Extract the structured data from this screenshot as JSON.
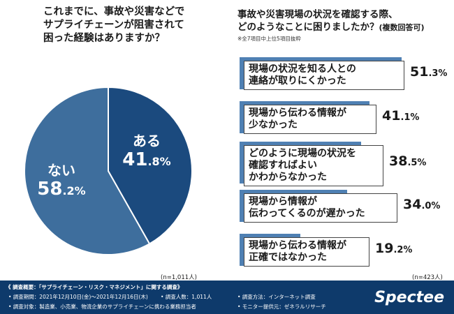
{
  "left_question": [
    "これまでに、事故や災害などで",
    "サプライチェーンが阻害されて",
    "困った経験はありますか？"
  ],
  "right_question": {
    "line1": "事故や災害現場の状況を確認する際、",
    "line2": "どのようなことに困りましたか？",
    "suffix": "(複数回答可)"
  },
  "right_note": "※全7項目中上位5項目抜粋",
  "left_n": "(n=1,011人)",
  "right_n": "(n=423人)",
  "colors": {
    "pie_yes": "#1b4a7e",
    "pie_no": "#3e6e9d",
    "bar_fill": "#4f80b3",
    "footer_bg": "#0e3a6b"
  },
  "chart_data": [
    {
      "type": "pie",
      "slices": [
        {
          "label": "ある",
          "value": 41.8,
          "display_main": "41",
          "display_dec": ".8%"
        },
        {
          "label": "ない",
          "value": 58.2,
          "display_main": "58",
          "display_dec": ".2%"
        }
      ]
    },
    {
      "type": "bar",
      "orientation": "horizontal",
      "bars": [
        {
          "lines": [
            "現場の状況を知る人との",
            "連絡が取りにくかった"
          ],
          "value": 51.3,
          "display_main": "51",
          "display_dec": ".3%"
        },
        {
          "lines": [
            "現場から伝わる情報が",
            "少なかった"
          ],
          "value": 41.1,
          "display_main": "41",
          "display_dec": ".1%"
        },
        {
          "lines": [
            "どのように現場の状況を",
            "確認すればよい",
            "かわからなかった"
          ],
          "value": 38.5,
          "display_main": "38",
          "display_dec": ".5%"
        },
        {
          "lines": [
            "現場から情報が",
            "伝わってくるのが遅かった"
          ],
          "value": 34.0,
          "display_main": "34",
          "display_dec": ".0%"
        },
        {
          "lines": [
            "現場から伝わる情報が",
            "正確ではなかった"
          ],
          "value": 19.2,
          "display_main": "19",
          "display_dec": ".2%"
        }
      ]
    }
  ],
  "footer": {
    "title": "《 調査概要：「サプライチェーン・リスク・マネジメント」に関する調査》",
    "period": "• 調査期間：2021年12月10日(金)〜2021年12月16日(木)",
    "count": "• 調査人数：1,011人",
    "method": "• 調査方法：インターネット調査",
    "target": "• 調査対象：製造業、小売業、物流企業のサプライチェーンに携わる業務担当者",
    "provider": "• モニター提供元：ゼネラルリサーチ",
    "brand": "Spectee"
  }
}
